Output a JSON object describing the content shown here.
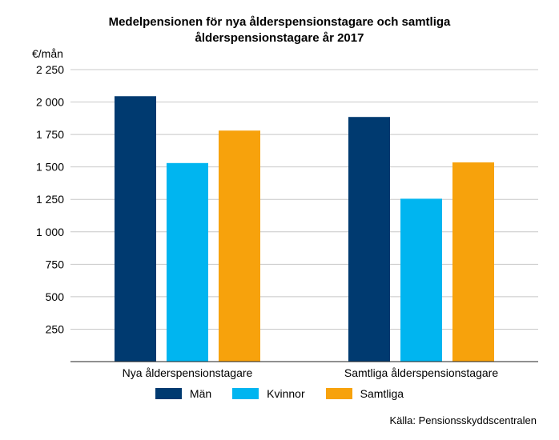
{
  "chart_data": {
    "type": "bar",
    "title_lines": [
      "Medelpensionen för nya ålderspensionstagare och samtliga",
      "ålderspensionstagare år 2017"
    ],
    "ylabel": "€/mån",
    "xlabel": "",
    "ylim": [
      0,
      2250
    ],
    "yticks": [
      250,
      500,
      750,
      1000,
      1250,
      1500,
      1750,
      2000,
      2250
    ],
    "ytick_labels": [
      "250",
      "500",
      "750",
      "1 000",
      "1 250",
      "1 500",
      "1 750",
      "2 000",
      "2 250"
    ],
    "grid": true,
    "legend_position": "bottom",
    "categories": [
      "Nya ålderspensionstagare",
      "Samtliga ålderspensionstagare"
    ],
    "series": [
      {
        "name": "Män",
        "color": "#003a70",
        "values": [
          2045,
          1885
        ]
      },
      {
        "name": "Kvinnor",
        "color": "#00b5f0",
        "values": [
          1530,
          1255
        ]
      },
      {
        "name": "Samtliga",
        "color": "#f7a20c",
        "values": [
          1780,
          1535
        ]
      }
    ],
    "source": "Källa: Pensionsskyddscentralen"
  }
}
